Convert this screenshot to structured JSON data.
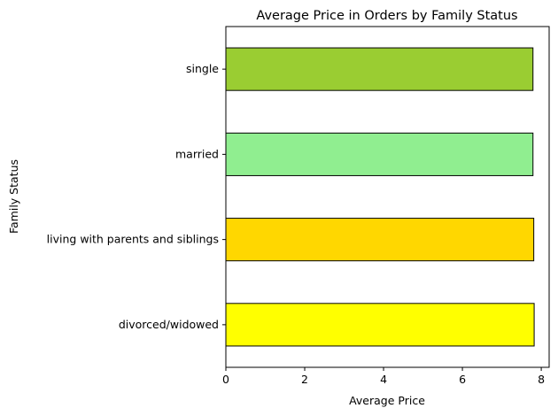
{
  "chart_data": {
    "type": "bar",
    "orientation": "horizontal",
    "title": "Average Price in Orders by Family Status",
    "xlabel": "Average Price",
    "ylabel": "Family Status",
    "categories": [
      "divorced/widowed",
      "living with parents and siblings",
      "married",
      "single"
    ],
    "values": [
      7.82,
      7.81,
      7.79,
      7.79
    ],
    "colors": [
      "#ffff00",
      "#ffd700",
      "#90ee90",
      "#9acd32"
    ],
    "xlim": [
      0,
      8.2
    ],
    "xticks": [
      0,
      2,
      4,
      6,
      8
    ],
    "edge_color": "#000000",
    "grid": false
  }
}
